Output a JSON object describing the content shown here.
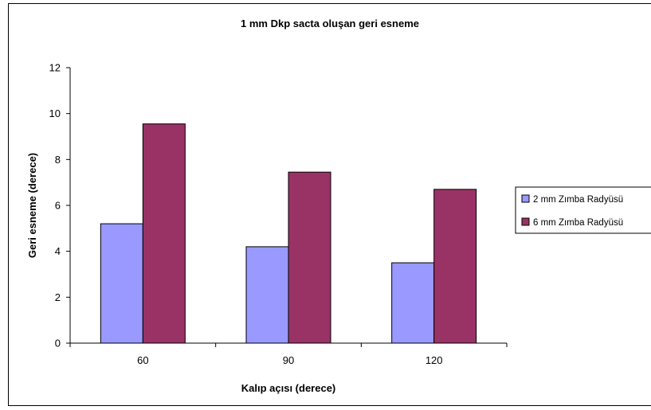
{
  "chart_data": {
    "type": "bar",
    "title": "1 mm Dkp sacta oluşan geri esneme",
    "xlabel": "Kalıp açısı (derece)",
    "ylabel": "Geri esneme (derece)",
    "categories": [
      "60",
      "90",
      "120"
    ],
    "ylim": [
      0,
      12
    ],
    "yticks": [
      0,
      2,
      4,
      6,
      8,
      10,
      12
    ],
    "grid": false,
    "legend_position": "right",
    "series": [
      {
        "name": "2 mm Zımba Radyüsü",
        "color": "#9999ff",
        "values": [
          5.2,
          4.2,
          3.5
        ]
      },
      {
        "name": "6 mm Zımba Radyüsü",
        "color": "#993366",
        "values": [
          9.55,
          7.45,
          6.7
        ]
      }
    ]
  }
}
